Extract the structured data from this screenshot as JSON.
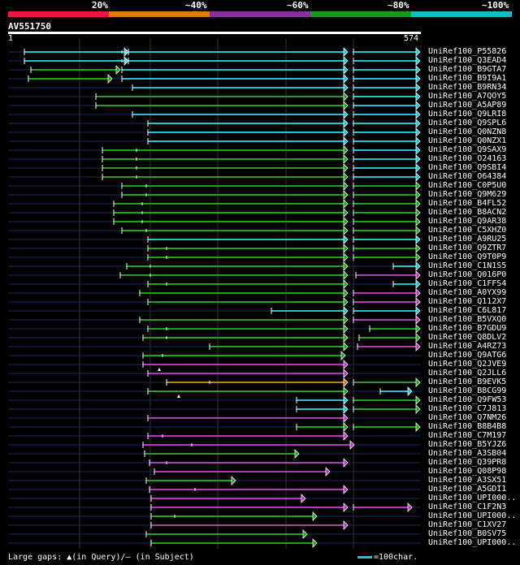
{
  "colors": {
    "red": "#e41a3c",
    "orange": "#e07a10",
    "purple": "#8e2ca8",
    "green": "#149e18",
    "cyan": "#1cb8c8",
    "seg_green": "#1fa31f",
    "seg_cyan": "#21c2d2",
    "seg_magenta": "#b23ab8",
    "seg_orange": "#d4731a"
  },
  "scale_labels": [
    "20%",
    "~40%",
    "~60%",
    "~80%",
    "~100%"
  ],
  "query": {
    "name": "AV551750",
    "start": "1",
    "end": "574"
  },
  "footer": {
    "gaps": "Large gaps: ▲(in Query)/– (in Subject)",
    "legend": "=100char."
  },
  "hits": [
    {
      "label": "UniRef100_P55826",
      "segs": [
        [
          30,
          158,
          "c"
        ],
        [
          158,
          428,
          "c"
        ],
        [
          435,
          517,
          "c"
        ]
      ],
      "ticks": [
        150,
        155
      ]
    },
    {
      "label": "UniRef100_Q3EAD4",
      "segs": [
        [
          30,
          158,
          "c"
        ],
        [
          158,
          428,
          "c"
        ],
        [
          435,
          517,
          "c"
        ]
      ],
      "ticks": [
        150,
        155
      ]
    },
    {
      "label": "UniRef100_B9GTA7",
      "segs": [
        [
          38,
          148,
          "g"
        ],
        [
          150,
          428,
          "c"
        ],
        [
          435,
          517,
          "c"
        ]
      ],
      "ticks": []
    },
    {
      "label": "UniRef100_B9I9A1",
      "segs": [
        [
          35,
          138,
          "g"
        ],
        [
          150,
          428,
          "c"
        ],
        [
          435,
          517,
          "c"
        ]
      ],
      "ticks": []
    },
    {
      "label": "UniRef100_B9RN34",
      "segs": [
        [
          163,
          428,
          "c"
        ],
        [
          435,
          517,
          "c"
        ]
      ],
      "ticks": []
    },
    {
      "label": "UniRef100_A7QOY5",
      "segs": [
        [
          118,
          428,
          "g"
        ],
        [
          435,
          517,
          "c"
        ]
      ],
      "ticks": []
    },
    {
      "label": "UniRef100_A5AP89",
      "segs": [
        [
          118,
          428,
          "g"
        ],
        [
          435,
          517,
          "c"
        ]
      ],
      "ticks": []
    },
    {
      "label": "UniRef100_Q9LRI8",
      "segs": [
        [
          163,
          428,
          "c"
        ],
        [
          435,
          517,
          "c"
        ]
      ],
      "ticks": []
    },
    {
      "label": "UniRef100_Q9SPL6",
      "segs": [
        [
          182,
          428,
          "c"
        ],
        [
          435,
          517,
          "c"
        ]
      ],
      "ticks": []
    },
    {
      "label": "UniRef100_Q0NZN8",
      "segs": [
        [
          182,
          428,
          "c"
        ],
        [
          435,
          517,
          "c"
        ]
      ],
      "ticks": []
    },
    {
      "label": "UniRef100_Q0NZX1",
      "segs": [
        [
          182,
          428,
          "c"
        ],
        [
          435,
          517,
          "c"
        ]
      ],
      "ticks": []
    },
    {
      "label": "UniRef100_Q9SAX9",
      "segs": [
        [
          126,
          428,
          "g"
        ],
        [
          435,
          517,
          "c"
        ]
      ],
      "ticks": [
        168
      ]
    },
    {
      "label": "UniRef100_O24163",
      "segs": [
        [
          126,
          428,
          "g"
        ],
        [
          435,
          517,
          "c"
        ]
      ],
      "ticks": [
        168
      ]
    },
    {
      "label": "UniRef100_Q9SBI4",
      "segs": [
        [
          126,
          428,
          "g"
        ],
        [
          435,
          517,
          "c"
        ]
      ],
      "ticks": [
        168
      ]
    },
    {
      "label": "UniRef100_O64384",
      "segs": [
        [
          126,
          428,
          "g"
        ],
        [
          435,
          517,
          "c"
        ]
      ],
      "ticks": [
        168
      ]
    },
    {
      "label": "UniRef100_C0P5U0",
      "segs": [
        [
          150,
          428,
          "g"
        ],
        [
          435,
          517,
          "g"
        ]
      ],
      "ticks": [
        180
      ]
    },
    {
      "label": "UniRef100_Q9M629",
      "segs": [
        [
          150,
          428,
          "g"
        ],
        [
          435,
          517,
          "g"
        ]
      ],
      "ticks": [
        180
      ]
    },
    {
      "label": "UniRef100_B4FL52",
      "segs": [
        [
          140,
          428,
          "g"
        ],
        [
          435,
          517,
          "g"
        ]
      ],
      "ticks": [
        175
      ]
    },
    {
      "label": "UniRef100_B8ACN2",
      "segs": [
        [
          140,
          428,
          "g"
        ],
        [
          435,
          517,
          "g"
        ]
      ],
      "ticks": [
        175
      ]
    },
    {
      "label": "UniRef100_Q9AR38",
      "segs": [
        [
          140,
          428,
          "g"
        ],
        [
          435,
          517,
          "g"
        ]
      ],
      "ticks": [
        175
      ]
    },
    {
      "label": "UniRef100_C5XHZ0",
      "segs": [
        [
          150,
          428,
          "g"
        ],
        [
          435,
          517,
          "g"
        ]
      ],
      "ticks": [
        180
      ]
    },
    {
      "label": "UniRef100_A9RU25",
      "segs": [
        [
          182,
          428,
          "c"
        ],
        [
          435,
          517,
          "c"
        ]
      ],
      "ticks": []
    },
    {
      "label": "UniRef100_Q9ZTR7",
      "segs": [
        [
          182,
          428,
          "g"
        ],
        [
          435,
          517,
          "g"
        ]
      ],
      "ticks": [
        205
      ]
    },
    {
      "label": "UniRef100_Q9T0P9",
      "segs": [
        [
          182,
          428,
          "g"
        ],
        [
          435,
          517,
          "g"
        ]
      ],
      "ticks": [
        205
      ]
    },
    {
      "label": "UniRef100_C1N1S5",
      "segs": [
        [
          156,
          428,
          "g"
        ],
        [
          484,
          517,
          "c"
        ]
      ],
      "ticks": [
        185
      ]
    },
    {
      "label": "UniRef100_Q016P0",
      "segs": [
        [
          148,
          428,
          "g"
        ],
        [
          438,
          517,
          "m"
        ]
      ],
      "ticks": [
        185
      ]
    },
    {
      "label": "UniRef100_C1FFS4",
      "segs": [
        [
          182,
          428,
          "g"
        ],
        [
          484,
          517,
          "c"
        ]
      ],
      "ticks": [
        205
      ]
    },
    {
      "label": "UniRef100_A0YX99",
      "segs": [
        [
          172,
          428,
          "g"
        ],
        [
          435,
          517,
          "m"
        ]
      ],
      "ticks": []
    },
    {
      "label": "UniRef100_Q112X7",
      "segs": [
        [
          182,
          428,
          "g"
        ],
        [
          435,
          517,
          "m"
        ]
      ],
      "ticks": []
    },
    {
      "label": "UniRef100_C6L817",
      "segs": [
        [
          334,
          428,
          "c"
        ],
        [
          435,
          517,
          "c"
        ]
      ],
      "ticks": []
    },
    {
      "label": "UniRef100_B5VXQ0",
      "segs": [
        [
          172,
          428,
          "g"
        ],
        [
          435,
          517,
          "m"
        ]
      ],
      "ticks": []
    },
    {
      "label": "UniRef100_B7GDU9",
      "segs": [
        [
          182,
          428,
          "g"
        ],
        [
          455,
          517,
          "g"
        ]
      ],
      "ticks": [
        205
      ]
    },
    {
      "label": "UniRef100_Q8DLV2",
      "segs": [
        [
          176,
          428,
          "g"
        ],
        [
          442,
          517,
          "g"
        ]
      ],
      "ticks": [
        205
      ]
    },
    {
      "label": "UniRef100_A4RZ73",
      "segs": [
        [
          258,
          428,
          "g"
        ],
        [
          440,
          517,
          "m"
        ]
      ],
      "ticks": []
    },
    {
      "label": "UniRef100_Q9ATG6",
      "segs": [
        [
          176,
          425,
          "g"
        ]
      ],
      "ticks": [
        200
      ]
    },
    {
      "label": "UniRef100_Q2JVE9",
      "segs": [
        [
          176,
          428,
          "m"
        ]
      ],
      "ticks": [],
      "tri": [
        196
      ]
    },
    {
      "label": "UniRef100_Q2JLL6",
      "segs": [
        [
          182,
          428,
          "m"
        ]
      ],
      "ticks": []
    },
    {
      "label": "UniRef100_B9EVK5",
      "segs": [
        [
          205,
          428,
          "o"
        ],
        [
          435,
          517,
          "g"
        ]
      ],
      "ticks": [
        258
      ]
    },
    {
      "label": "UniRef100_B8CG99",
      "segs": [
        [
          182,
          428,
          "g"
        ],
        [
          468,
          507,
          "c"
        ]
      ],
      "ticks": [],
      "tri": [
        220
      ]
    },
    {
      "label": "UniRef100_Q9FW53",
      "segs": [
        [
          365,
          428,
          "c"
        ],
        [
          435,
          517,
          "g"
        ]
      ],
      "ticks": []
    },
    {
      "label": "UniRef100_C7J813",
      "segs": [
        [
          365,
          428,
          "c"
        ],
        [
          435,
          517,
          "g"
        ]
      ],
      "ticks": []
    },
    {
      "label": "UniRef100_Q7NM26",
      "segs": [
        [
          182,
          428,
          "m"
        ]
      ],
      "ticks": []
    },
    {
      "label": "UniRef100_B8B4B8",
      "segs": [
        [
          365,
          428,
          "g"
        ],
        [
          435,
          517,
          "g"
        ]
      ],
      "ticks": []
    },
    {
      "label": "UniRef100_C7M197",
      "segs": [
        [
          182,
          428,
          "m"
        ]
      ],
      "ticks": [
        200
      ]
    },
    {
      "label": "UniRef100_B5YJZ6",
      "segs": [
        [
          176,
          436,
          "m"
        ]
      ],
      "ticks": [
        236
      ]
    },
    {
      "label": "UniRef100_A3SB04",
      "segs": [
        [
          178,
          368,
          "g"
        ]
      ],
      "ticks": []
    },
    {
      "label": "UniRef100_Q39PR8",
      "segs": [
        [
          184,
          428,
          "m"
        ]
      ],
      "ticks": [
        205
      ]
    },
    {
      "label": "UniRef100_Q08P98",
      "segs": [
        [
          190,
          406,
          "m"
        ]
      ],
      "ticks": []
    },
    {
      "label": "UniRef100_A3SX51",
      "segs": [
        [
          180,
          290,
          "g"
        ]
      ],
      "ticks": []
    },
    {
      "label": "UniRef100_A5GDI1",
      "segs": [
        [
          184,
          428,
          "m"
        ]
      ],
      "ticks": [
        240
      ]
    },
    {
      "label": "UniRef100_UPI000..",
      "segs": [
        [
          186,
          376,
          "m"
        ]
      ],
      "ticks": []
    },
    {
      "label": "UniRef100_C1F2N3",
      "segs": [
        [
          186,
          428,
          "m"
        ],
        [
          435,
          507,
          "m"
        ]
      ],
      "ticks": []
    },
    {
      "label": "UniRef100_UPI000..",
      "segs": [
        [
          186,
          390,
          "g"
        ]
      ],
      "ticks": [
        215
      ]
    },
    {
      "label": "UniRef100_C1XV27",
      "segs": [
        [
          186,
          428,
          "m"
        ]
      ],
      "ticks": []
    },
    {
      "label": "UniRef100_B0SV75",
      "segs": [
        [
          180,
          378,
          "g"
        ]
      ],
      "ticks": []
    },
    {
      "label": "UniRef100_UPI000..",
      "segs": [
        [
          186,
          390,
          "g"
        ]
      ],
      "ticks": []
    }
  ]
}
